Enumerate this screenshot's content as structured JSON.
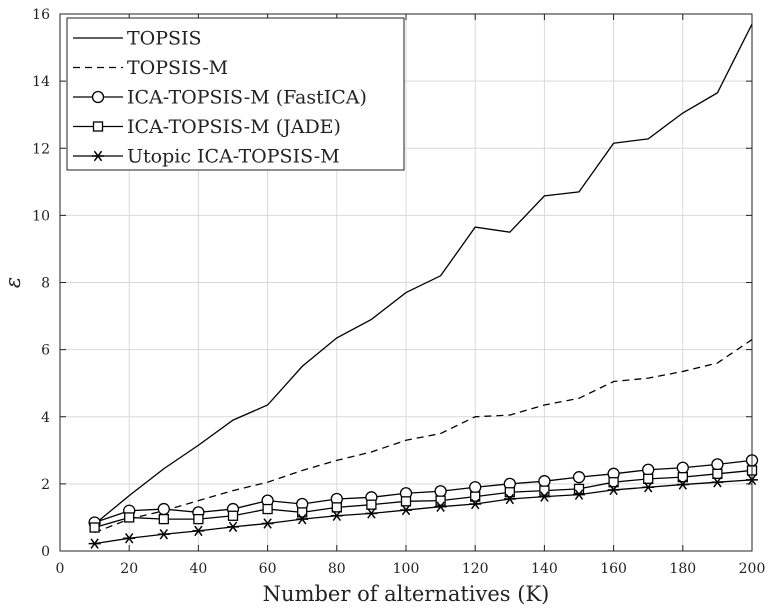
{
  "chart_data": {
    "type": "line",
    "xlabel": "Number of alternatives (K)",
    "ylabel": "ε",
    "xlim": [
      0,
      200
    ],
    "ylim": [
      0,
      16
    ],
    "xticks": [
      0,
      20,
      40,
      60,
      80,
      100,
      120,
      140,
      160,
      180,
      200
    ],
    "yticks": [
      0,
      2,
      4,
      6,
      8,
      10,
      12,
      14,
      16
    ],
    "grid": true,
    "legend_position": "top-left",
    "x": [
      10,
      20,
      30,
      40,
      50,
      60,
      70,
      80,
      90,
      100,
      110,
      120,
      130,
      140,
      150,
      160,
      170,
      180,
      190,
      200
    ],
    "series": [
      {
        "name": "TOPSIS",
        "line_style": "solid",
        "marker": "none",
        "color": "#000000",
        "values": [
          0.8,
          1.65,
          2.45,
          3.15,
          3.9,
          4.35,
          5.5,
          6.35,
          6.9,
          7.7,
          8.2,
          9.65,
          9.5,
          10.58,
          10.7,
          12.15,
          12.28,
          13.05,
          13.65,
          15.7
        ]
      },
      {
        "name": "TOPSIS-M",
        "line_style": "dashed",
        "marker": "none",
        "color": "#000000",
        "values": [
          0.55,
          0.95,
          1.2,
          1.5,
          1.8,
          2.05,
          2.4,
          2.7,
          2.95,
          3.3,
          3.5,
          4.0,
          4.05,
          4.35,
          4.55,
          5.05,
          5.15,
          5.35,
          5.6,
          6.3
        ]
      },
      {
        "name": "ICA-TOPSIS-M (FastICA)",
        "line_style": "solid",
        "marker": "circle",
        "color": "#000000",
        "values": [
          0.85,
          1.2,
          1.25,
          1.15,
          1.25,
          1.5,
          1.4,
          1.55,
          1.6,
          1.72,
          1.78,
          1.9,
          2.0,
          2.08,
          2.2,
          2.3,
          2.42,
          2.48,
          2.58,
          2.7
        ]
      },
      {
        "name": "ICA-TOPSIS-M (JADE)",
        "line_style": "solid",
        "marker": "square",
        "color": "#000000",
        "values": [
          0.7,
          1.0,
          0.95,
          0.95,
          1.05,
          1.25,
          1.15,
          1.3,
          1.38,
          1.48,
          1.5,
          1.62,
          1.75,
          1.8,
          1.85,
          2.05,
          2.15,
          2.2,
          2.3,
          2.4
        ]
      },
      {
        "name": "Utopic ICA-TOPSIS-M",
        "line_style": "solid",
        "marker": "asterisk",
        "color": "#000000",
        "values": [
          0.22,
          0.38,
          0.5,
          0.6,
          0.72,
          0.82,
          0.95,
          1.05,
          1.12,
          1.22,
          1.32,
          1.4,
          1.55,
          1.62,
          1.68,
          1.82,
          1.9,
          1.98,
          2.05,
          2.12
        ]
      }
    ]
  }
}
